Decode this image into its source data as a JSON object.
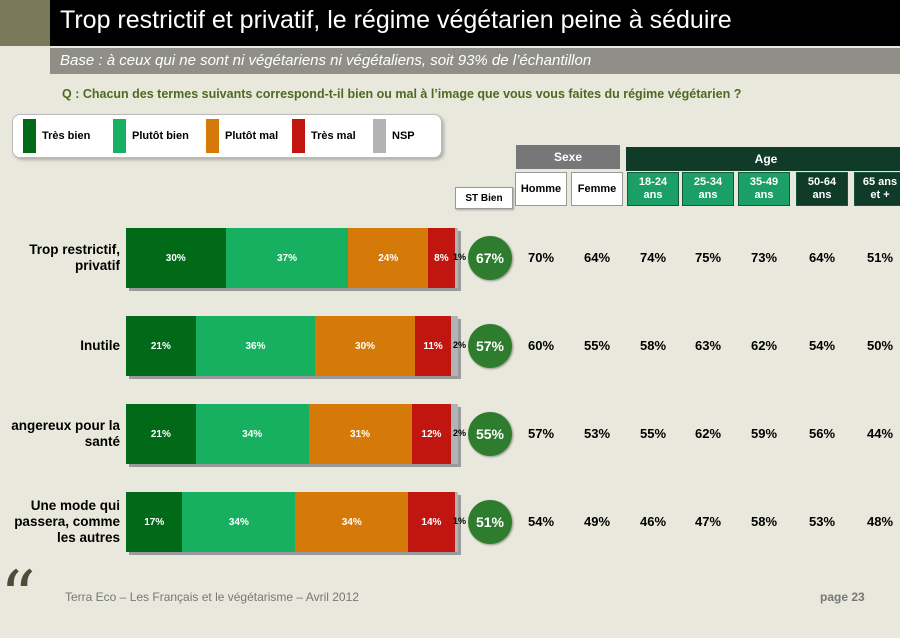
{
  "title": "Trop restrictif et privatif, le régime végétarien peine à séduire",
  "subtitle": "Base : à ceux qui ne sont ni végétariens ni végétaliens, soit 93% de l’échantillon",
  "question": "Q : Chacun des termes suivants correspond-t-il bien ou mal à l’image que vous vous faites du régime végétarien ?",
  "footer": "Terra Eco – Les Français et le végétarisme – Avril 2012",
  "page": "page 23",
  "quote_icon": "“",
  "colors": {
    "tres_bien": "#006a18",
    "plutot_bien": "#17b061",
    "plutot_mal": "#d57a08",
    "tres_mal": "#c1150f",
    "nsp": "#b3b3b3",
    "circle": "#2e7d2e"
  },
  "chart_data": {
    "type": "bar",
    "stacked": true,
    "orientation": "horizontal",
    "legend_position": "top-left",
    "categories": [
      "Trop restrictif,\nprivatif",
      "Inutile",
      "angereux pour la\nsanté",
      "Une mode qui\npassera, comme\nles autres"
    ],
    "series": [
      {
        "name": "Très bien",
        "values": [
          30,
          21,
          21,
          17
        ]
      },
      {
        "name": "Plutôt bien",
        "values": [
          37,
          36,
          34,
          34
        ]
      },
      {
        "name": "Plutôt mal",
        "values": [
          24,
          30,
          31,
          34
        ]
      },
      {
        "name": "Très mal",
        "values": [
          8,
          11,
          12,
          14
        ]
      },
      {
        "name": "NSP",
        "values": [
          1,
          2,
          2,
          1
        ]
      }
    ],
    "segment_labels": [
      [
        "30%",
        "37%",
        "24%",
        "8%"
      ],
      [
        "21%",
        "36%",
        "30%",
        "11%"
      ],
      [
        "21%",
        "34%",
        "31%",
        "12%"
      ],
      [
        "17%",
        "34%",
        "34%",
        "14%"
      ]
    ],
    "nsp_labels": [
      "1%",
      "2%",
      "2%",
      "1%"
    ],
    "st_bien_header": "ST Bien",
    "st_bien": [
      "67%",
      "57%",
      "55%",
      "51%"
    ],
    "groups": [
      {
        "label": "Sexe",
        "columns": [
          "Homme",
          "Femme"
        ]
      },
      {
        "label": "Age",
        "columns": [
          "18-24\nans",
          "25-34\nans",
          "35-49\nans",
          "50-64\nans",
          "65 ans\net +"
        ]
      }
    ],
    "table": [
      [
        "70%",
        "64%",
        "74%",
        "75%",
        "73%",
        "64%",
        "51%"
      ],
      [
        "60%",
        "55%",
        "58%",
        "63%",
        "62%",
        "54%",
        "50%"
      ],
      [
        "57%",
        "53%",
        "55%",
        "62%",
        "59%",
        "56%",
        "44%"
      ],
      [
        "54%",
        "49%",
        "46%",
        "47%",
        "58%",
        "53%",
        "48%"
      ]
    ]
  }
}
